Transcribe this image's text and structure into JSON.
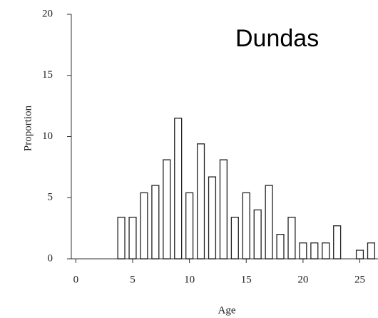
{
  "chart_data": {
    "type": "bar",
    "annotation": "Dundas",
    "xlabel": "Age",
    "ylabel": "Proportion",
    "x": [
      4,
      5,
      6,
      7,
      8,
      9,
      10,
      11,
      12,
      13,
      14,
      15,
      16,
      17,
      18,
      19,
      20,
      21,
      22,
      23,
      25,
      26
    ],
    "values": [
      3.4,
      3.4,
      5.4,
      6,
      8.1,
      11.5,
      5.4,
      9.4,
      6.7,
      8.1,
      3.4,
      5.4,
      4,
      6,
      2,
      3.4,
      1.3,
      1.3,
      1.3,
      2.7,
      0.7,
      1.3
    ],
    "color": "#ffffff",
    "xlim": [
      -0.4,
      26.6
    ],
    "xticks": [
      0,
      5,
      10,
      15,
      20,
      25
    ],
    "ylim": [
      0,
      20
    ],
    "yticks": [
      0,
      5,
      10,
      15,
      20
    ]
  }
}
